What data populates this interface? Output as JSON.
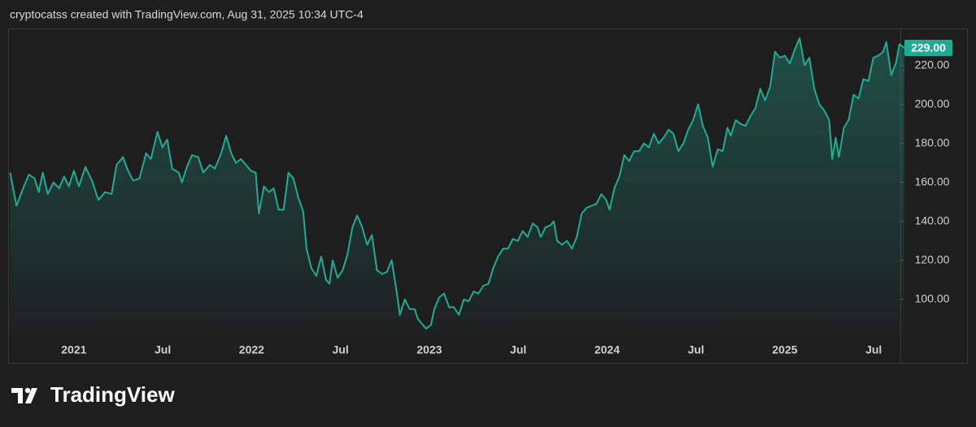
{
  "chart_data": {
    "type": "area",
    "title": "cryptocatss created with TradingView.com, Aug 31, 2025 10:34 UTC-4",
    "watermark": "TradingView",
    "color": "#22ab94",
    "xlim": [
      2020.63,
      2025.65
    ],
    "xticks": [
      {
        "value": 2021,
        "label": "2021"
      },
      {
        "value": 2021.5,
        "label": "Jul"
      },
      {
        "value": 2022,
        "label": "2022"
      },
      {
        "value": 2022.5,
        "label": "Jul"
      },
      {
        "value": 2023,
        "label": "2023"
      },
      {
        "value": 2023.5,
        "label": "Jul"
      },
      {
        "value": 2024,
        "label": "2024"
      },
      {
        "value": 2024.5,
        "label": "Jul"
      },
      {
        "value": 2025,
        "label": "2025"
      },
      {
        "value": 2025.5,
        "label": "Jul"
      }
    ],
    "ylim": [
      67,
      239
    ],
    "yticks": [
      {
        "value": 100,
        "label": "100.00"
      },
      {
        "value": 120,
        "label": "120.00"
      },
      {
        "value": 140,
        "label": "140.00"
      },
      {
        "value": 160,
        "label": "160.00"
      },
      {
        "value": 180,
        "label": "180.00"
      },
      {
        "value": 200,
        "label": "200.00"
      },
      {
        "value": 220,
        "label": "220.00"
      }
    ],
    "last_price": {
      "value": 229,
      "label": "229.00"
    },
    "x": [
      2020.641,
      2020.677,
      2020.714,
      2020.747,
      2020.779,
      2020.802,
      2020.825,
      2020.853,
      2020.885,
      2020.917,
      2020.945,
      2020.972,
      2021.0,
      2021.028,
      2021.065,
      2021.101,
      2021.138,
      2021.175,
      2021.212,
      2021.24,
      2021.276,
      2021.3,
      2021.332,
      2021.369,
      2021.406,
      2021.433,
      2021.47,
      2021.498,
      2021.525,
      2021.553,
      2021.59,
      2021.608,
      2021.636,
      2021.664,
      2021.7,
      2021.728,
      2021.765,
      2021.793,
      2021.829,
      2021.857,
      2021.885,
      2021.912,
      2021.94,
      2021.968,
      2021.995,
      2022.023,
      2022.041,
      2022.069,
      2022.097,
      2022.124,
      2022.152,
      2022.18,
      2022.207,
      2022.235,
      2022.263,
      2022.29,
      2022.309,
      2022.336,
      2022.364,
      2022.392,
      2022.419,
      2022.438,
      2022.456,
      2022.484,
      2022.512,
      2022.539,
      2022.567,
      2022.594,
      2022.622,
      2022.65,
      2022.677,
      2022.705,
      2022.733,
      2022.76,
      2022.788,
      2022.816,
      2022.834,
      2022.862,
      2022.889,
      2022.917,
      2022.935,
      2022.963,
      2022.982,
      2023.009,
      2023.028,
      2023.055,
      2023.083,
      2023.111,
      2023.138,
      2023.166,
      2023.194,
      2023.221,
      2023.249,
      2023.276,
      2023.304,
      2023.332,
      2023.359,
      2023.387,
      2023.415,
      2023.442,
      2023.47,
      2023.498,
      2023.525,
      2023.553,
      2023.581,
      2023.608,
      2023.627,
      2023.654,
      2023.682,
      2023.7,
      2023.719,
      2023.747,
      2023.774,
      2023.802,
      2023.829,
      2023.857,
      2023.885,
      2023.912,
      2023.94,
      2023.968,
      2023.995,
      2024.014,
      2024.041,
      2024.069,
      2024.097,
      2024.124,
      2024.152,
      2024.18,
      2024.207,
      2024.235,
      2024.263,
      2024.29,
      2024.318,
      2024.346,
      2024.373,
      2024.401,
      2024.429,
      2024.456,
      2024.484,
      2024.512,
      2024.539,
      2024.567,
      2024.594,
      2024.622,
      2024.65,
      2024.677,
      2024.696,
      2024.724,
      2024.751,
      2024.779,
      2024.806,
      2024.834,
      2024.862,
      2024.889,
      2024.917,
      2024.945,
      2024.972,
      2025.0,
      2025.028,
      2025.055,
      2025.083,
      2025.111,
      2025.138,
      2025.166,
      2025.194,
      2025.221,
      2025.249,
      2025.267,
      2025.286,
      2025.304,
      2025.332,
      2025.359,
      2025.387,
      2025.415,
      2025.442,
      2025.47,
      2025.498,
      2025.525,
      2025.553,
      2025.571,
      2025.599,
      2025.627,
      2025.645,
      2025.673
    ],
    "values": [
      165,
      148,
      157,
      164,
      162,
      155,
      165,
      154,
      160,
      157,
      163,
      158,
      166,
      158,
      168,
      161,
      151,
      155,
      154,
      169,
      173,
      167,
      161,
      162,
      175,
      172,
      186,
      178,
      182,
      167,
      165,
      160,
      168,
      174,
      173,
      165,
      169,
      167,
      175,
      184,
      175,
      170,
      172,
      169,
      166,
      165,
      144,
      158,
      155,
      157,
      146,
      146,
      165,
      162,
      152,
      145,
      126,
      116,
      112,
      122,
      110,
      108,
      120,
      111,
      115,
      123,
      137,
      143,
      137,
      128,
      133,
      115,
      113,
      114,
      120,
      104,
      92,
      100,
      95,
      95,
      90,
      87,
      85,
      87,
      95,
      101,
      103,
      96,
      96,
      92,
      100,
      99,
      104,
      103,
      107,
      108,
      116,
      122,
      126,
      126,
      131,
      130,
      135,
      132,
      139,
      137,
      132,
      137,
      138,
      140,
      130,
      128,
      130,
      126,
      132,
      144,
      147,
      148,
      149,
      154,
      151,
      146,
      157,
      163,
      174,
      171,
      176,
      176,
      180,
      178,
      185,
      180,
      183,
      187,
      185,
      176,
      180,
      187,
      192,
      200,
      189,
      183,
      168,
      177,
      176,
      188,
      184,
      192,
      190,
      189,
      194,
      198,
      208,
      202,
      209,
      227,
      224,
      225,
      221,
      228,
      234,
      220,
      224,
      208,
      200,
      197,
      192,
      172,
      183,
      173,
      188,
      192,
      205,
      203,
      213,
      212,
      224,
      225,
      227,
      232,
      215,
      222,
      231,
      229
    ]
  }
}
